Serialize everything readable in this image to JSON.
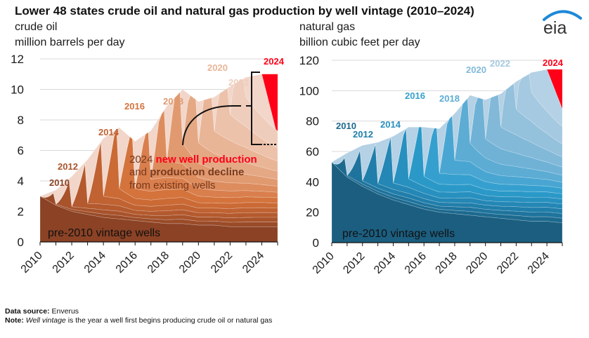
{
  "title": "Lower 48 states crude oil and natural gas production by well vintage (2010–2024)",
  "logo_text": "eia",
  "footer": {
    "source_label": "Data source:",
    "source_value": "Enverus",
    "note_label": "Note:",
    "note_italic": "Well vintage",
    "note_rest": "is the year a well first begins producing crude oil or natural gas"
  },
  "chart_data": [
    {
      "type": "area",
      "stacked": true,
      "title": "crude oil",
      "ylabel": "million barrels per day",
      "xlabel": "",
      "xlim": [
        2010,
        2025
      ],
      "ylim": [
        0,
        12
      ],
      "yticks": [
        0,
        2,
        4,
        6,
        8,
        10,
        12
      ],
      "xticks": [
        2010,
        2012,
        2014,
        2016,
        2018,
        2020,
        2022,
        2024
      ],
      "grid": "horizontal",
      "x": [
        2010,
        2011,
        2012,
        2013,
        2014,
        2015,
        2016,
        2017,
        2018,
        2019,
        2020,
        2021,
        2022,
        2023,
        2024,
        2025
      ],
      "total": [
        3.0,
        3.4,
        4.3,
        5.4,
        6.8,
        7.5,
        6.6,
        7.3,
        8.9,
        10.0,
        9.2,
        9.5,
        10.2,
        10.8,
        11.0,
        11.0
      ],
      "series_note": "Layers are well vintages: pre-2010 base plus one layer per vintage year 2010–2024; 2024 vintage shown in red",
      "vintages": [
        "pre-2010",
        "2010",
        "2011",
        "2012",
        "2013",
        "2014",
        "2015",
        "2016",
        "2017",
        "2018",
        "2019",
        "2020",
        "2021",
        "2022",
        "2023",
        "2024"
      ],
      "base_pre2010": [
        3.0,
        2.4,
        2.0,
        1.8,
        1.6,
        1.5,
        1.4,
        1.3,
        1.2,
        1.2,
        1.1,
        1.1,
        1.0,
        1.0,
        1.0,
        1.0
      ],
      "colors": [
        "#8b4225",
        "#9a4b28",
        "#a8532b",
        "#b45a2e",
        "#c06231",
        "#cb6a35",
        "#d4733c",
        "#d97f4d",
        "#dd8c5e",
        "#e19a70",
        "#e5a884",
        "#e9b597",
        "#ecc2ab",
        "#efcdbc",
        "#f2d6c9",
        "#ff0018"
      ],
      "vintage_labels": [
        {
          "text": "2010",
          "color": "#8b4225"
        },
        {
          "text": "2012",
          "color": "#a8532b"
        },
        {
          "text": "2014",
          "color": "#c06231"
        },
        {
          "text": "2016",
          "color": "#d4733c"
        },
        {
          "text": "2018",
          "color": "#e19a70"
        },
        {
          "text": "2020",
          "color": "#e9b597"
        },
        {
          "text": "2022",
          "color": "#efcdbc"
        },
        {
          "text": "2024",
          "color": "#ff0018"
        }
      ],
      "base_label": "pre-2010 vintage wells",
      "annotation": {
        "line1_plain": "2024 ",
        "line1_highlight": "new well production",
        "line2_plain": "and ",
        "line2_bold": "production decline",
        "line3": "from existing wells",
        "highlight_color": "#ff0018"
      },
      "red_2024_top": 11.0,
      "red_2024_bottom_end": 6.9
    },
    {
      "type": "area",
      "stacked": true,
      "title": "natural gas",
      "ylabel": "billion cubic feet per day",
      "xlabel": "",
      "xlim": [
        2010,
        2025
      ],
      "ylim": [
        0,
        120
      ],
      "yticks": [
        0,
        20,
        40,
        60,
        80,
        100,
        120
      ],
      "xticks": [
        2010,
        2012,
        2014,
        2016,
        2018,
        2020,
        2022,
        2024
      ],
      "grid": "horizontal",
      "x": [
        2010,
        2011,
        2012,
        2013,
        2014,
        2015,
        2016,
        2017,
        2018,
        2019,
        2020,
        2021,
        2022,
        2023,
        2024,
        2025
      ],
      "total": [
        53,
        59,
        64,
        66,
        70,
        76,
        76,
        75,
        85,
        97,
        94,
        98,
        106,
        112,
        114,
        114
      ],
      "vintages": [
        "pre-2010",
        "2010",
        "2011",
        "2012",
        "2013",
        "2014",
        "2015",
        "2016",
        "2017",
        "2018",
        "2019",
        "2020",
        "2021",
        "2022",
        "2023",
        "2024"
      ],
      "base_pre2010": [
        53,
        43,
        37,
        32,
        28,
        25,
        22,
        20,
        19,
        18,
        17,
        16,
        15,
        14,
        14,
        13
      ],
      "colors": [
        "#1b5e80",
        "#1d6a8f",
        "#1f749d",
        "#217eaa",
        "#2487b5",
        "#2790bf",
        "#2b99c8",
        "#35a0cf",
        "#49a6d2",
        "#5cacd4",
        "#6fb2d6",
        "#82b9d9",
        "#94c1dc",
        "#a5c9e0",
        "#b4d1e5",
        "#ff0018"
      ],
      "vintage_labels": [
        {
          "text": "2010",
          "color": "#1d6a8f"
        },
        {
          "text": "2012",
          "color": "#217eaa"
        },
        {
          "text": "2014",
          "color": "#2790bf"
        },
        {
          "text": "2016",
          "color": "#35a0cf"
        },
        {
          "text": "2018",
          "color": "#5cacd4"
        },
        {
          "text": "2020",
          "color": "#82b9d9"
        },
        {
          "text": "2022",
          "color": "#a5c9e0"
        },
        {
          "text": "2024",
          "color": "#ff0018"
        }
      ],
      "base_label": "pre-2010 vintage wells",
      "red_2024_top": 114,
      "red_2024_bottom_end": 88
    }
  ]
}
